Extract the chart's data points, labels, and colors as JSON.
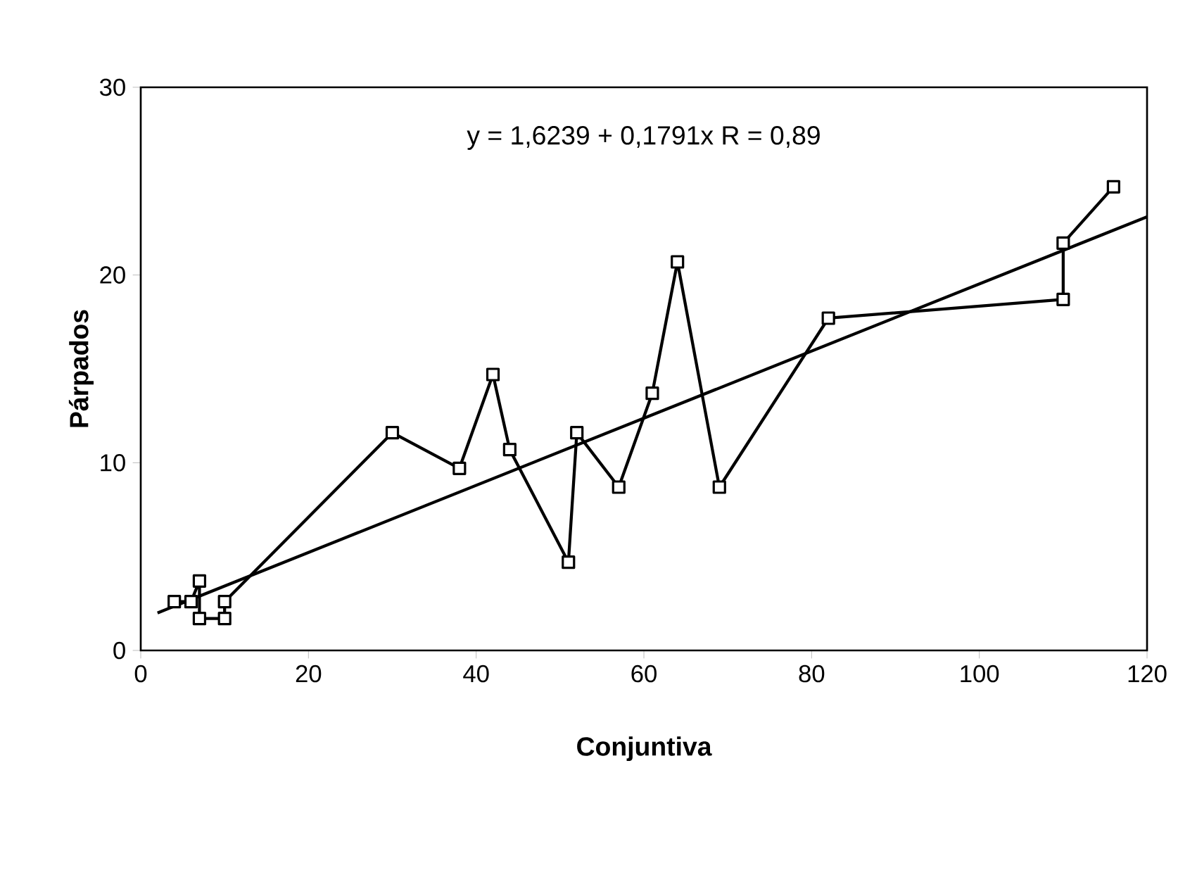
{
  "chart_data": {
    "type": "line",
    "xlabel": "Conjuntiva",
    "ylabel": "Párpados",
    "annotations": [
      "y = 1,6239 + 0,1791x    R = 0,89"
    ],
    "xlim": [
      0,
      120
    ],
    "xticks": [
      0,
      20,
      40,
      60,
      80,
      100,
      120
    ],
    "ylim": [
      0,
      30
    ],
    "yticks": [
      0,
      10,
      20,
      30
    ],
    "grid": false,
    "series": [
      {
        "color": "#000000",
        "marker": "square",
        "x": [
          4,
          6,
          7,
          7,
          10,
          10,
          30,
          38,
          42,
          44,
          51,
          52,
          57,
          61,
          64,
          69,
          82,
          110,
          110,
          116
        ],
        "values": [
          2.6,
          2.6,
          3.7,
          1.7,
          1.7,
          2.6,
          11.6,
          9.7,
          14.7,
          10.7,
          4.7,
          11.6,
          8.7,
          13.7,
          20.7,
          8.7,
          17.7,
          18.7,
          21.7,
          24.7
        ]
      },
      {
        "type": "line",
        "color": "#000000",
        "marker": "none",
        "x": [
          2,
          120
        ],
        "values": [
          2.0,
          23.1
        ]
      }
    ]
  }
}
